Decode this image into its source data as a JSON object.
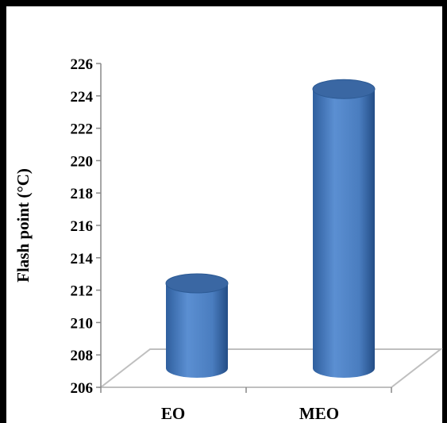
{
  "chart_data": {
    "type": "bar",
    "style": "3d-cylinder",
    "title": "",
    "xlabel": "",
    "ylabel": "Flash point  (°C)",
    "categories": [
      "EO",
      "MEO"
    ],
    "values": [
      213.5,
      225.5
    ],
    "ylim": [
      206,
      226
    ],
    "yticks": [
      "206",
      "208",
      "210",
      "212",
      "214",
      "216",
      "218",
      "220",
      "222",
      "224",
      "226"
    ],
    "grid": false,
    "legend": "none",
    "bar_color": "#4f81bd",
    "bar_top_color": "#3a67a3",
    "floor_color": "#bfbfbf"
  }
}
